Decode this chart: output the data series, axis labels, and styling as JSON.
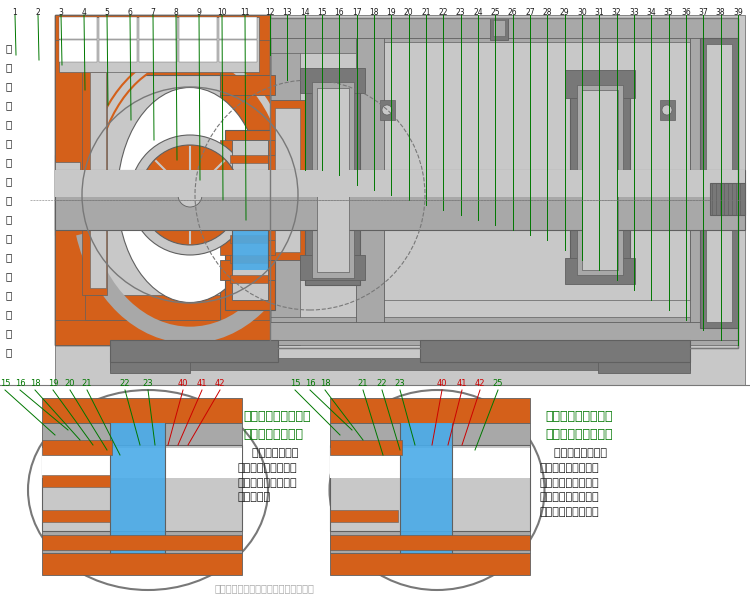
{
  "bg": "#FFFFFF",
  "orange": "#D4601A",
  "gray_l": "#C8C8C8",
  "gray_m": "#A8A8A8",
  "gray_d": "#787878",
  "gray_vd": "#606060",
  "blue": "#4AABE8",
  "green": "#007700",
  "red": "#CC0000",
  "black": "#1A1A1A",
  "white": "#FFFFFF",
  "top_nums": [
    "1",
    "2",
    "3",
    "4",
    "5",
    "6",
    "7",
    "8",
    "9",
    "10",
    "11",
    "12",
    "13",
    "14",
    "15",
    "16",
    "17",
    "18",
    "19",
    "20",
    "21",
    "22",
    "23",
    "24",
    "25",
    "26",
    "27",
    "28",
    "29",
    "30",
    "31",
    "32",
    "33",
    "34",
    "35",
    "36",
    "37",
    "38",
    "39"
  ],
  "left_chars": [
    "带",
    "减",
    "压",
    "副",
    "叶",
    "轮",
    "、",
    "不",
    "带",
    "冷",
    "却",
    "水",
    "的",
    "泵",
    "结",
    "构",
    "图"
  ],
  "bl_nums": [
    "15",
    "16",
    "18",
    "19",
    "20",
    "21",
    "22",
    "23",
    "40",
    "41",
    "42"
  ],
  "bl_colors": [
    "g",
    "g",
    "g",
    "g",
    "g",
    "g",
    "g",
    "g",
    "r",
    "r",
    "r"
  ],
  "br_nums": [
    "15",
    "16",
    "18",
    "21",
    "22",
    "23",
    "40",
    "41",
    "42",
    "25"
  ],
  "br_colors": [
    "g",
    "g",
    "g",
    "g",
    "g",
    "g",
    "r",
    "r",
    "r",
    "g"
  ],
  "bl_title": "带减压副叶轮、带冷\n却水的密封结构图",
  "bl_desc": "    适用于需要经常\n开空车的工况，外接\n冷却水可延长密封的\n使用寿命。",
  "br_title": "不带减压副叶轮、带\n冷却水的密封结构图",
  "br_desc": "    适用于出口压力低\n或需经常开空车的工\n况，密封部位无需减\n压，外接冷却水可延\n长密封的使用寿命。",
  "note": "注：红色序号为与主结构图的差异部分"
}
